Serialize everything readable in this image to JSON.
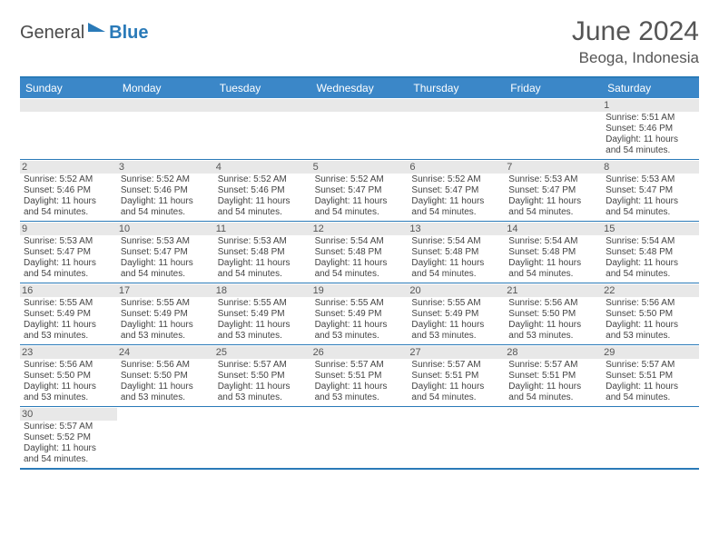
{
  "logo": {
    "text1": "General",
    "text2": "Blue",
    "icon_color": "#2a7ab8"
  },
  "header": {
    "title": "June 2024",
    "location": "Beoga, Indonesia"
  },
  "colors": {
    "header_bg": "#3b87c8",
    "border": "#2a7ab8",
    "daynum_bg": "#e8e8e8",
    "blank_bg": "#f0f0f0",
    "text_main": "#444",
    "title_color": "#555"
  },
  "day_names": [
    "Sunday",
    "Monday",
    "Tuesday",
    "Wednesday",
    "Thursday",
    "Friday",
    "Saturday"
  ],
  "weeks": [
    [
      {
        "blank": true
      },
      {
        "blank": true
      },
      {
        "blank": true
      },
      {
        "blank": true
      },
      {
        "blank": true
      },
      {
        "blank": true
      },
      {
        "day": "1",
        "sunrise": "Sunrise: 5:51 AM",
        "sunset": "Sunset: 5:46 PM",
        "daylight": "Daylight: 11 hours and 54 minutes."
      }
    ],
    [
      {
        "day": "2",
        "sunrise": "Sunrise: 5:52 AM",
        "sunset": "Sunset: 5:46 PM",
        "daylight": "Daylight: 11 hours and 54 minutes."
      },
      {
        "day": "3",
        "sunrise": "Sunrise: 5:52 AM",
        "sunset": "Sunset: 5:46 PM",
        "daylight": "Daylight: 11 hours and 54 minutes."
      },
      {
        "day": "4",
        "sunrise": "Sunrise: 5:52 AM",
        "sunset": "Sunset: 5:46 PM",
        "daylight": "Daylight: 11 hours and 54 minutes."
      },
      {
        "day": "5",
        "sunrise": "Sunrise: 5:52 AM",
        "sunset": "Sunset: 5:47 PM",
        "daylight": "Daylight: 11 hours and 54 minutes."
      },
      {
        "day": "6",
        "sunrise": "Sunrise: 5:52 AM",
        "sunset": "Sunset: 5:47 PM",
        "daylight": "Daylight: 11 hours and 54 minutes."
      },
      {
        "day": "7",
        "sunrise": "Sunrise: 5:53 AM",
        "sunset": "Sunset: 5:47 PM",
        "daylight": "Daylight: 11 hours and 54 minutes."
      },
      {
        "day": "8",
        "sunrise": "Sunrise: 5:53 AM",
        "sunset": "Sunset: 5:47 PM",
        "daylight": "Daylight: 11 hours and 54 minutes."
      }
    ],
    [
      {
        "day": "9",
        "sunrise": "Sunrise: 5:53 AM",
        "sunset": "Sunset: 5:47 PM",
        "daylight": "Daylight: 11 hours and 54 minutes."
      },
      {
        "day": "10",
        "sunrise": "Sunrise: 5:53 AM",
        "sunset": "Sunset: 5:47 PM",
        "daylight": "Daylight: 11 hours and 54 minutes."
      },
      {
        "day": "11",
        "sunrise": "Sunrise: 5:53 AM",
        "sunset": "Sunset: 5:48 PM",
        "daylight": "Daylight: 11 hours and 54 minutes."
      },
      {
        "day": "12",
        "sunrise": "Sunrise: 5:54 AM",
        "sunset": "Sunset: 5:48 PM",
        "daylight": "Daylight: 11 hours and 54 minutes."
      },
      {
        "day": "13",
        "sunrise": "Sunrise: 5:54 AM",
        "sunset": "Sunset: 5:48 PM",
        "daylight": "Daylight: 11 hours and 54 minutes."
      },
      {
        "day": "14",
        "sunrise": "Sunrise: 5:54 AM",
        "sunset": "Sunset: 5:48 PM",
        "daylight": "Daylight: 11 hours and 54 minutes."
      },
      {
        "day": "15",
        "sunrise": "Sunrise: 5:54 AM",
        "sunset": "Sunset: 5:48 PM",
        "daylight": "Daylight: 11 hours and 54 minutes."
      }
    ],
    [
      {
        "day": "16",
        "sunrise": "Sunrise: 5:55 AM",
        "sunset": "Sunset: 5:49 PM",
        "daylight": "Daylight: 11 hours and 53 minutes."
      },
      {
        "day": "17",
        "sunrise": "Sunrise: 5:55 AM",
        "sunset": "Sunset: 5:49 PM",
        "daylight": "Daylight: 11 hours and 53 minutes."
      },
      {
        "day": "18",
        "sunrise": "Sunrise: 5:55 AM",
        "sunset": "Sunset: 5:49 PM",
        "daylight": "Daylight: 11 hours and 53 minutes."
      },
      {
        "day": "19",
        "sunrise": "Sunrise: 5:55 AM",
        "sunset": "Sunset: 5:49 PM",
        "daylight": "Daylight: 11 hours and 53 minutes."
      },
      {
        "day": "20",
        "sunrise": "Sunrise: 5:55 AM",
        "sunset": "Sunset: 5:49 PM",
        "daylight": "Daylight: 11 hours and 53 minutes."
      },
      {
        "day": "21",
        "sunrise": "Sunrise: 5:56 AM",
        "sunset": "Sunset: 5:50 PM",
        "daylight": "Daylight: 11 hours and 53 minutes."
      },
      {
        "day": "22",
        "sunrise": "Sunrise: 5:56 AM",
        "sunset": "Sunset: 5:50 PM",
        "daylight": "Daylight: 11 hours and 53 minutes."
      }
    ],
    [
      {
        "day": "23",
        "sunrise": "Sunrise: 5:56 AM",
        "sunset": "Sunset: 5:50 PM",
        "daylight": "Daylight: 11 hours and 53 minutes."
      },
      {
        "day": "24",
        "sunrise": "Sunrise: 5:56 AM",
        "sunset": "Sunset: 5:50 PM",
        "daylight": "Daylight: 11 hours and 53 minutes."
      },
      {
        "day": "25",
        "sunrise": "Sunrise: 5:57 AM",
        "sunset": "Sunset: 5:50 PM",
        "daylight": "Daylight: 11 hours and 53 minutes."
      },
      {
        "day": "26",
        "sunrise": "Sunrise: 5:57 AM",
        "sunset": "Sunset: 5:51 PM",
        "daylight": "Daylight: 11 hours and 53 minutes."
      },
      {
        "day": "27",
        "sunrise": "Sunrise: 5:57 AM",
        "sunset": "Sunset: 5:51 PM",
        "daylight": "Daylight: 11 hours and 54 minutes."
      },
      {
        "day": "28",
        "sunrise": "Sunrise: 5:57 AM",
        "sunset": "Sunset: 5:51 PM",
        "daylight": "Daylight: 11 hours and 54 minutes."
      },
      {
        "day": "29",
        "sunrise": "Sunrise: 5:57 AM",
        "sunset": "Sunset: 5:51 PM",
        "daylight": "Daylight: 11 hours and 54 minutes."
      }
    ],
    [
      {
        "day": "30",
        "sunrise": "Sunrise: 5:57 AM",
        "sunset": "Sunset: 5:52 PM",
        "daylight": "Daylight: 11 hours and 54 minutes."
      },
      {
        "blank": true
      },
      {
        "blank": true
      },
      {
        "blank": true
      },
      {
        "blank": true
      },
      {
        "blank": true
      },
      {
        "blank": true
      }
    ]
  ]
}
